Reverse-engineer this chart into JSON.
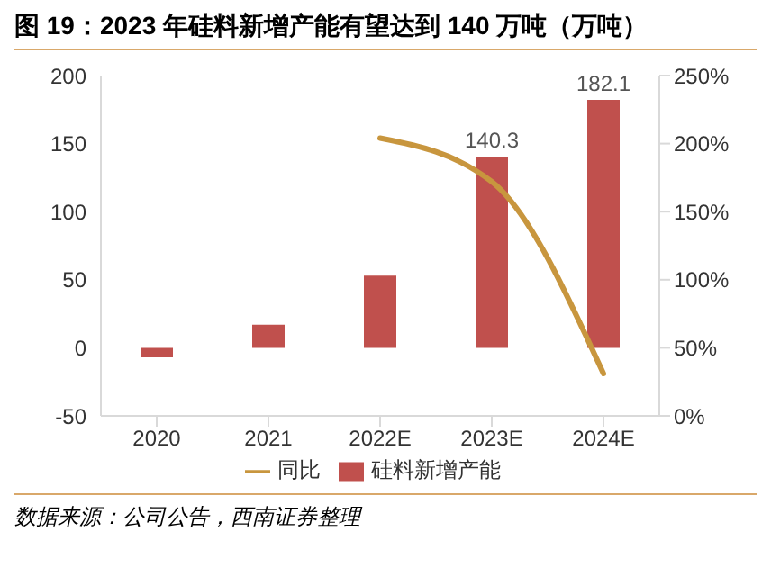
{
  "chart_data": {
    "type": "bar",
    "title": "图 19：2023 年硅料新增产能有望达到 140 万吨（万吨）",
    "categories": [
      "2020",
      "2021",
      "2022E",
      "2023E",
      "2024E"
    ],
    "series": [
      {
        "name": "硅料新增产能",
        "color": "#c0504d",
        "values": [
          -7,
          17,
          53,
          140.3,
          182.1
        ],
        "value_labels": [
          null,
          null,
          null,
          "140.3",
          "182.1"
        ]
      },
      {
        "name": "同比",
        "type": "line",
        "axis": "y2",
        "color": "#c8963e",
        "values": [
          null,
          null,
          204,
          172,
          31
        ]
      }
    ],
    "ylim": [
      -50,
      200
    ],
    "yticks": [
      -50,
      0,
      50,
      100,
      150,
      200
    ],
    "y2lim": [
      0,
      250
    ],
    "y2ticks": [
      {
        "value": 0,
        "label": "0%"
      },
      {
        "value": 50,
        "label": "50%"
      },
      {
        "value": 100,
        "label": "100%"
      },
      {
        "value": 150,
        "label": "150%"
      },
      {
        "value": 200,
        "label": "200%"
      },
      {
        "value": 250,
        "label": "250%"
      }
    ],
    "grid": false,
    "legend": "bottom",
    "marker": "none",
    "line_style": "solid",
    "annotations": [
      "数据来源：公司公告，西南证券整理"
    ]
  }
}
